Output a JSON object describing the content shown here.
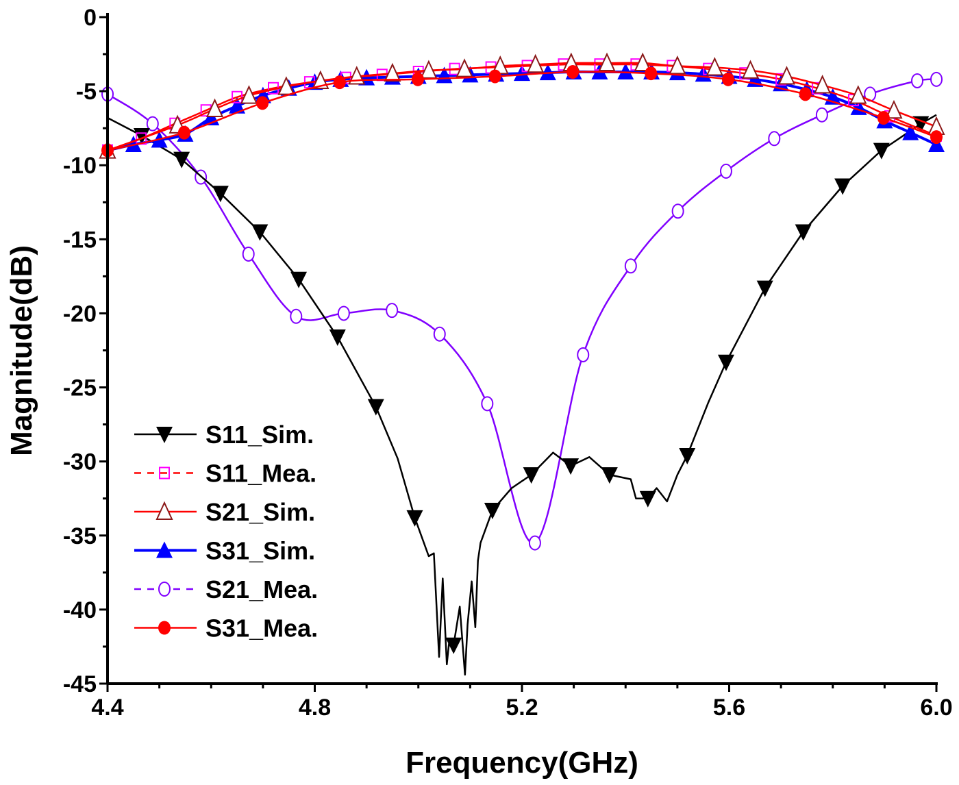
{
  "chart_data": {
    "type": "line",
    "title": "",
    "xlabel": "Frequency(GHz)",
    "ylabel": "Magnitude(dB)",
    "xlim": [
      4.4,
      6.0
    ],
    "ylim": [
      -45,
      0
    ],
    "x_ticks": [
      "4.4",
      "4.8",
      "5.2",
      "5.6",
      "6.0"
    ],
    "y_ticks": [
      "0",
      "-5",
      "-10",
      "-15",
      "-20",
      "-25",
      "-30",
      "-35",
      "-40",
      "-45"
    ],
    "grid": false,
    "legend_position": "bottom-left",
    "series": [
      {
        "name": "S11_Sim.",
        "color": "#000000",
        "marker": "triangle-down-filled",
        "dashed": false,
        "smooth": false,
        "x": [
          4.4,
          4.466,
          4.543,
          4.618,
          4.694,
          4.769,
          4.844,
          4.918,
          4.96,
          4.993,
          5.02,
          5.03,
          5.04,
          5.047,
          5.055,
          5.06,
          5.068,
          5.08,
          5.09,
          5.095,
          5.103,
          5.11,
          5.115,
          5.12,
          5.143,
          5.18,
          5.218,
          5.26,
          5.294,
          5.33,
          5.369,
          5.41,
          5.42,
          5.443,
          5.46,
          5.48,
          5.5,
          5.519,
          5.56,
          5.594,
          5.669,
          5.743,
          5.819,
          5.894,
          5.97,
          6.0
        ],
        "y": [
          -6.8,
          -8.0,
          -9.6,
          -11.9,
          -14.5,
          -17.7,
          -21.6,
          -26.3,
          -29.8,
          -33.8,
          -36.4,
          -36.2,
          -43.2,
          -37.9,
          -43.7,
          -42.0,
          -42.4,
          -39.8,
          -44.4,
          -41.0,
          -38.1,
          -41.2,
          -36.7,
          -35.5,
          -33.3,
          -31.8,
          -30.9,
          -29.4,
          -30.3,
          -29.7,
          -30.9,
          -31.2,
          -32.5,
          -32.5,
          -31.8,
          -32.7,
          -30.9,
          -29.6,
          -26.0,
          -23.3,
          -18.3,
          -14.5,
          -11.4,
          -9.0,
          -7.2,
          -6.6
        ],
        "marker_x": [
          4.466,
          4.543,
          4.618,
          4.694,
          4.769,
          4.844,
          4.918,
          4.993,
          5.068,
          5.143,
          5.218,
          5.294,
          5.369,
          5.443,
          5.519,
          5.594,
          5.669,
          5.743,
          5.819,
          5.894,
          5.97
        ],
        "marker_y": [
          -8.0,
          -9.6,
          -11.9,
          -14.5,
          -17.7,
          -21.6,
          -26.3,
          -33.8,
          -42.4,
          -33.3,
          -30.9,
          -30.3,
          -30.9,
          -32.5,
          -29.6,
          -23.3,
          -18.3,
          -14.5,
          -11.4,
          -9.0,
          -7.2
        ]
      },
      {
        "name": "S11_Mea.",
        "color": "#ff0000",
        "marker_color": "#ff00ff",
        "marker": "square-open",
        "dashed": true,
        "smooth": true,
        "x": [
          4.4,
          4.465,
          4.53,
          4.59,
          4.65,
          4.72,
          4.79,
          4.86,
          4.93,
          5.0,
          5.07,
          5.14,
          5.21,
          5.28,
          5.35,
          5.42,
          5.49,
          5.56,
          5.63,
          5.7,
          5.77,
          5.84,
          5.91,
          6.0
        ],
        "y": [
          -9.0,
          -8.2,
          -7.2,
          -6.3,
          -5.4,
          -4.8,
          -4.4,
          -4.1,
          -3.9,
          -3.7,
          -3.5,
          -3.4,
          -3.3,
          -3.2,
          -3.2,
          -3.2,
          -3.3,
          -3.5,
          -3.8,
          -4.2,
          -4.8,
          -5.6,
          -6.7,
          -8.0
        ]
      },
      {
        "name": "S21_Sim.",
        "color": "#ff0000",
        "marker_color": "#8b1a1a",
        "marker": "triangle-up-open",
        "dashed": false,
        "smooth": true,
        "x": [
          4.4,
          4.535,
          4.607,
          4.673,
          4.745,
          4.811,
          4.881,
          4.95,
          5.02,
          5.089,
          5.158,
          5.226,
          5.295,
          5.364,
          5.433,
          5.5,
          5.572,
          5.641,
          5.711,
          5.78,
          5.849,
          5.918,
          6.0
        ],
        "y": [
          -9.0,
          -7.3,
          -6.2,
          -5.3,
          -4.7,
          -4.3,
          -4.0,
          -3.8,
          -3.6,
          -3.5,
          -3.3,
          -3.2,
          -3.1,
          -3.1,
          -3.1,
          -3.3,
          -3.4,
          -3.6,
          -4.0,
          -4.6,
          -5.3,
          -6.3,
          -7.4
        ]
      },
      {
        "name": "S31_Sim.",
        "color": "#0000ff",
        "marker": "triangle-up-filled",
        "dashed": false,
        "smooth": true,
        "x": [
          4.4,
          4.45,
          4.5,
          4.55,
          4.6,
          4.65,
          4.7,
          4.75,
          4.8,
          4.85,
          4.9,
          4.95,
          5.0,
          5.05,
          5.1,
          5.15,
          5.2,
          5.25,
          5.3,
          5.35,
          5.4,
          5.45,
          5.5,
          5.55,
          5.6,
          5.65,
          5.7,
          5.75,
          5.8,
          5.85,
          5.9,
          5.95,
          6.0
        ],
        "y": [
          -9.0,
          -8.6,
          -8.3,
          -7.9,
          -6.8,
          -6.0,
          -5.3,
          -4.8,
          -4.4,
          -4.2,
          -4.1,
          -4.05,
          -4.0,
          -3.95,
          -3.9,
          -3.85,
          -3.8,
          -3.75,
          -3.7,
          -3.7,
          -3.7,
          -3.7,
          -3.75,
          -3.85,
          -4.0,
          -4.2,
          -4.5,
          -4.9,
          -5.4,
          -6.1,
          -7.0,
          -7.8,
          -8.6
        ]
      },
      {
        "name": "S21_Mea.",
        "color": "#8000ff",
        "marker": "circle-open",
        "dashed": true,
        "smooth": true,
        "x": [
          4.4,
          4.487,
          4.58,
          4.672,
          4.764,
          4.856,
          4.949,
          5.041,
          5.133,
          5.225,
          5.318,
          5.41,
          5.501,
          5.594,
          5.687,
          5.779,
          5.872,
          5.963,
          6.0
        ],
        "y": [
          -5.2,
          -7.2,
          -10.8,
          -16.0,
          -20.2,
          -20.0,
          -19.8,
          -21.4,
          -26.1,
          -35.5,
          -22.8,
          -16.8,
          -13.1,
          -10.4,
          -8.2,
          -6.6,
          -5.2,
          -4.3,
          -4.2
        ]
      },
      {
        "name": "S31_Mea.",
        "color": "#ff0000",
        "marker": "circle-filled",
        "dashed": false,
        "smooth": true,
        "x": [
          4.4,
          4.548,
          4.699,
          4.848,
          4.999,
          5.148,
          5.298,
          5.449,
          5.598,
          5.747,
          5.898,
          6.0
        ],
        "y": [
          -9.0,
          -7.8,
          -5.8,
          -4.4,
          -4.2,
          -4.0,
          -3.7,
          -3.8,
          -4.2,
          -5.2,
          -6.8,
          -8.1
        ]
      }
    ]
  }
}
